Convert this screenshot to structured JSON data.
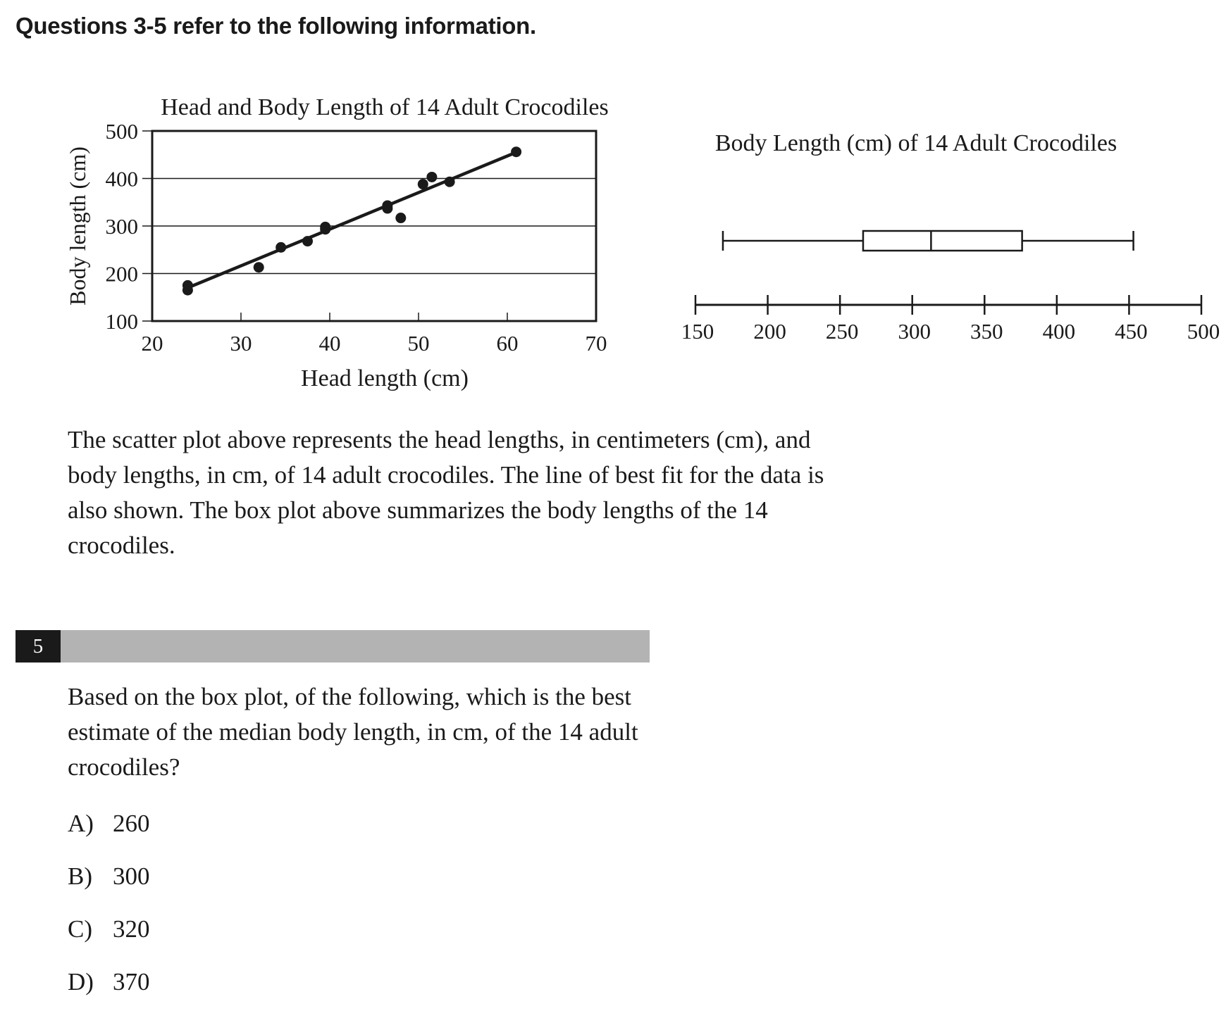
{
  "header": {
    "title": "Questions 3-5 refer to the following information."
  },
  "passage": {
    "text": "The scatter plot above represents the head lengths, in centimeters (cm), and body lengths, in cm, of 14 adult crocodiles. The line of best fit for the data is also shown. The box plot above summarizes the body lengths of the 14 crocodiles."
  },
  "question": {
    "number": "5",
    "text": "Based on the box plot, of the following, which is the best estimate of the median body length, in cm, of the 14 adult crocodiles?",
    "choices": [
      {
        "letter": "A)",
        "value": "260"
      },
      {
        "letter": "B)",
        "value": "300"
      },
      {
        "letter": "C)",
        "value": "320"
      },
      {
        "letter": "D)",
        "value": "370"
      }
    ]
  },
  "chart_data": [
    {
      "type": "scatter",
      "title": "Head and Body Length of 14 Adult Crocodiles",
      "xlabel": "Head length (cm)",
      "ylabel": "Body length (cm)",
      "xlim": [
        20,
        70
      ],
      "ylim": [
        100,
        500
      ],
      "xticks": [
        20,
        30,
        40,
        50,
        60,
        70
      ],
      "yticks": [
        100,
        200,
        300,
        400,
        500
      ],
      "grid": "horizontal",
      "points": [
        {
          "x": 24,
          "y": 175
        },
        {
          "x": 24,
          "y": 165
        },
        {
          "x": 32,
          "y": 213
        },
        {
          "x": 34.5,
          "y": 255
        },
        {
          "x": 37.5,
          "y": 268
        },
        {
          "x": 39.5,
          "y": 298
        },
        {
          "x": 39.5,
          "y": 293
        },
        {
          "x": 46.5,
          "y": 343
        },
        {
          "x": 46.5,
          "y": 337
        },
        {
          "x": 48,
          "y": 317
        },
        {
          "x": 50.5,
          "y": 388
        },
        {
          "x": 51.5,
          "y": 403
        },
        {
          "x": 53.5,
          "y": 393
        },
        {
          "x": 61,
          "y": 456
        }
      ],
      "best_fit": {
        "x": [
          24,
          61
        ],
        "y": [
          170,
          455
        ]
      }
    },
    {
      "type": "box",
      "title": "Body Length (cm) of 14 Adult Crocodiles",
      "min": 169,
      "q1": 266,
      "median": 313,
      "q3": 376,
      "max": 453,
      "xlim": [
        150,
        500
      ],
      "xticks": [
        150,
        200,
        250,
        300,
        350,
        400,
        450,
        500
      ]
    }
  ]
}
